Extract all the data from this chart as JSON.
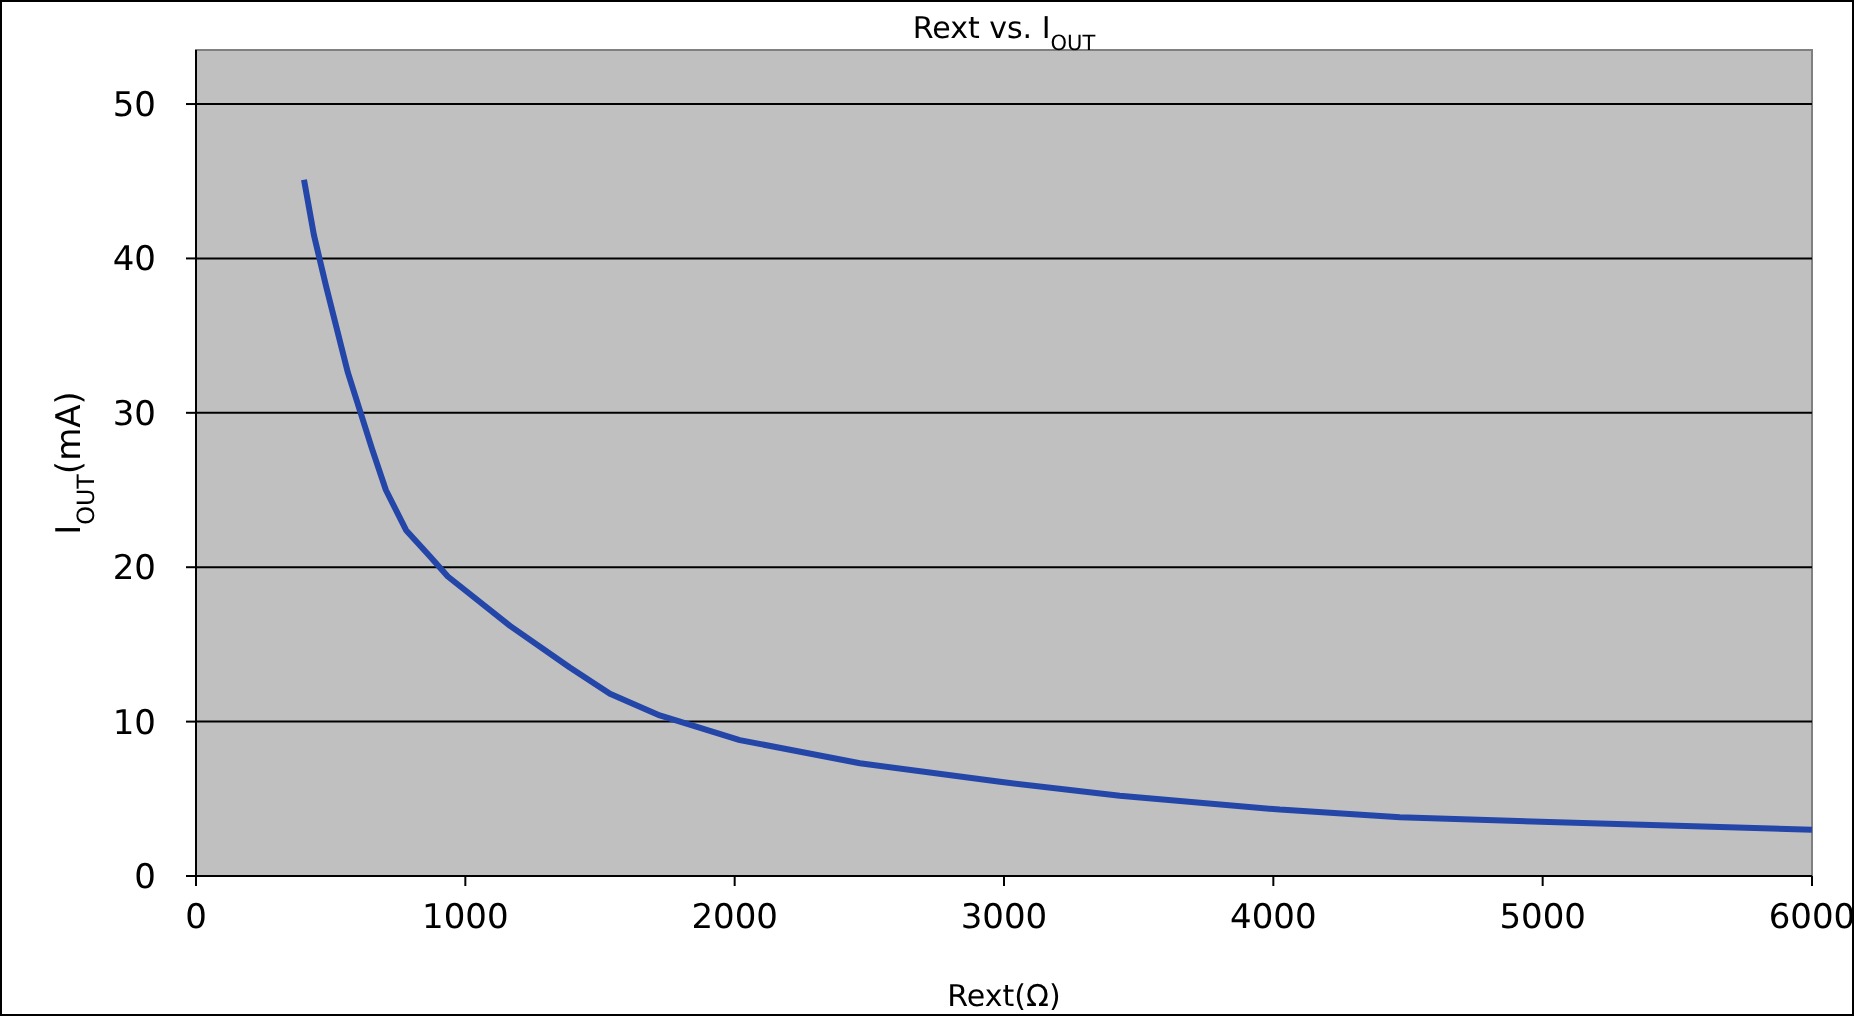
{
  "chart_data": {
    "type": "line",
    "title": "Rext vs. I$_{OUT}$",
    "xlabel": "Rext(Ω)",
    "ylabel": "I$_{OUT}$(mA)",
    "xlim": [
      0,
      6000
    ],
    "xticks": [
      0,
      1000,
      2000,
      3000,
      4000,
      5000,
      6000
    ],
    "ylim": [
      0,
      53.5
    ],
    "yticks": [
      0,
      10,
      20,
      30,
      40,
      50
    ],
    "grid": "y",
    "series": [
      {
        "color": "#2446a8",
        "x": [
          401,
          438,
          483,
          564,
          653,
          705,
          780,
          869,
          935,
          1166,
          1388,
          1537,
          1722,
          2019,
          2465,
          2985,
          3430,
          4024,
          4470,
          5212,
          6000
        ],
        "values": [
          45.1,
          41.5,
          38.2,
          32.6,
          27.7,
          25,
          22.4,
          20.7,
          19.4,
          16.2,
          13.5,
          11.8,
          10.4,
          8.8,
          7.3,
          6.1,
          5.2,
          4.3,
          3.8,
          3.4,
          3.0
        ]
      }
    ]
  }
}
